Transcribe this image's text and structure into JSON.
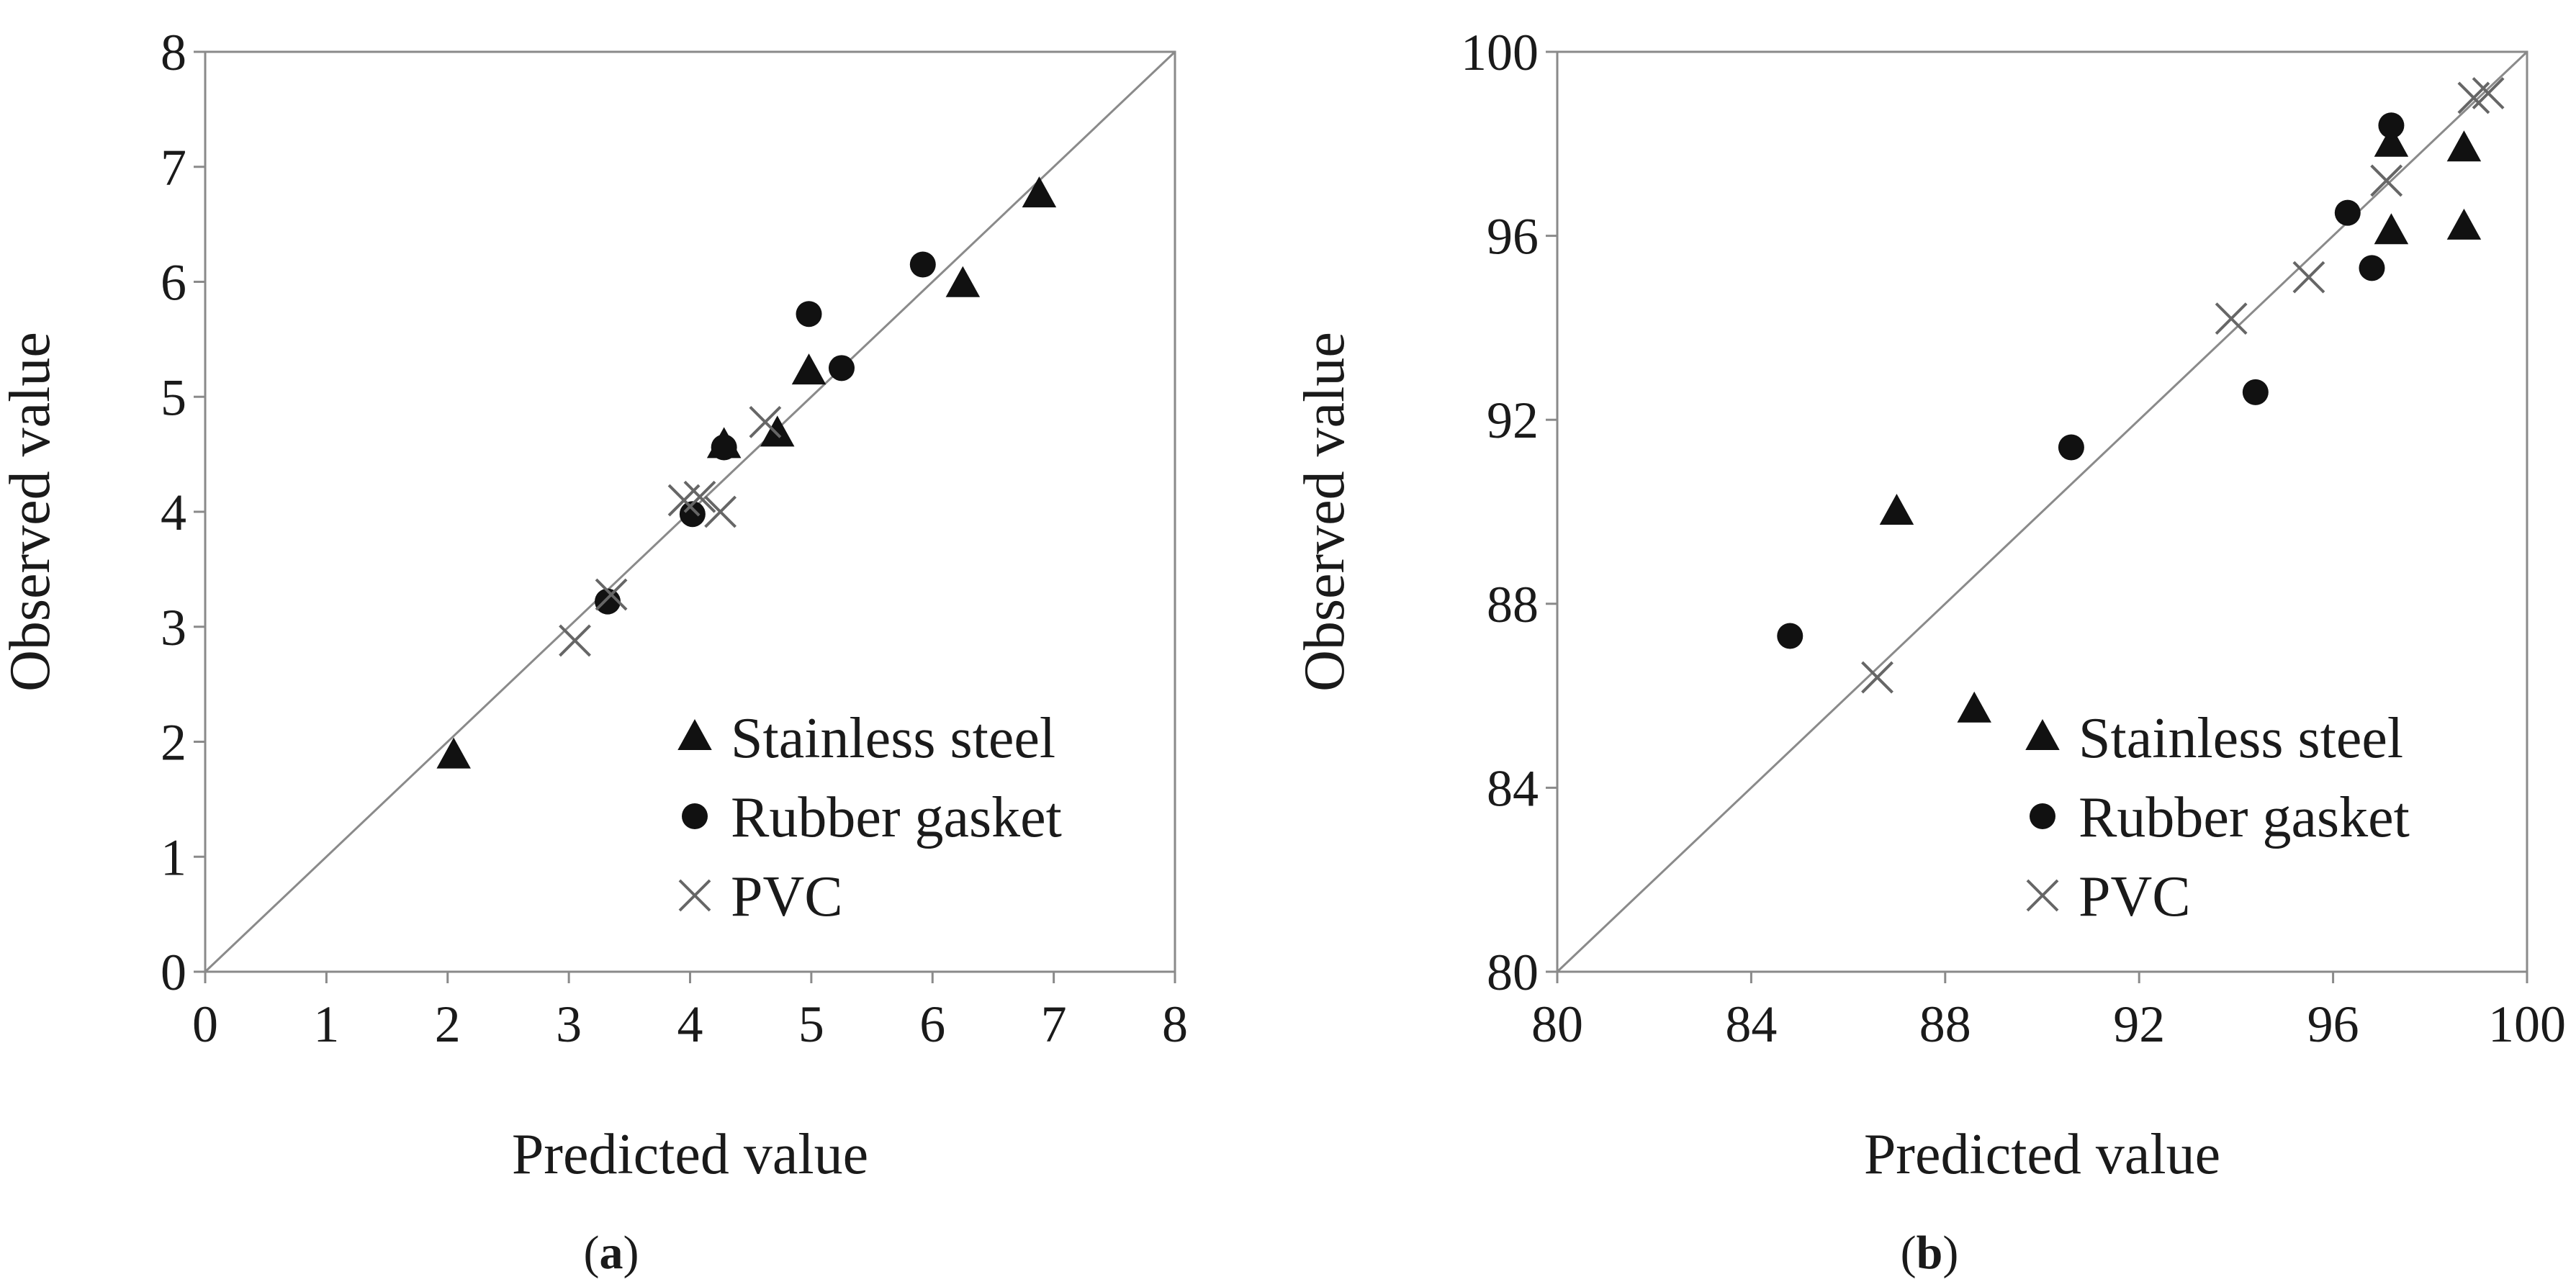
{
  "chart_data": [
    {
      "panel_label": "(a)",
      "type": "scatter",
      "xlabel": "Predicted value",
      "ylabel": "Observed value",
      "xlim": [
        0,
        8
      ],
      "ylim": [
        0,
        8
      ],
      "x_ticks": [
        0,
        1,
        2,
        3,
        4,
        5,
        6,
        7,
        8
      ],
      "y_ticks": [
        0,
        1,
        2,
        3,
        4,
        5,
        6,
        7,
        8
      ],
      "reference_line": "y = x",
      "legend_position": "bottom-right",
      "series": [
        {
          "name": "Stainless steel",
          "marker": "triangle",
          "points": [
            [
              2.05,
              1.88
            ],
            [
              4.28,
              4.58
            ],
            [
              4.72,
              4.68
            ],
            [
              4.98,
              5.22
            ],
            [
              6.25,
              5.98
            ],
            [
              6.88,
              6.76
            ]
          ]
        },
        {
          "name": "Rubber gasket",
          "marker": "circle",
          "points": [
            [
              3.32,
              3.22
            ],
            [
              4.02,
              3.98
            ],
            [
              4.28,
              4.56
            ],
            [
              4.98,
              5.72
            ],
            [
              5.25,
              5.25
            ],
            [
              5.92,
              6.15
            ]
          ]
        },
        {
          "name": "PVC",
          "marker": "cross",
          "points": [
            [
              3.05,
              2.88
            ],
            [
              3.35,
              3.28
            ],
            [
              3.95,
              4.1
            ],
            [
              4.08,
              4.13
            ],
            [
              4.25,
              4.0
            ],
            [
              4.62,
              4.78
            ]
          ]
        }
      ]
    },
    {
      "panel_label": "(b)",
      "type": "scatter",
      "xlabel": "Predicted value",
      "ylabel": "Observed value",
      "xlim": [
        80,
        100
      ],
      "ylim": [
        80,
        100
      ],
      "x_ticks": [
        80,
        84,
        88,
        92,
        96,
        100
      ],
      "y_ticks": [
        80,
        84,
        88,
        92,
        96,
        100
      ],
      "reference_line": "y = x",
      "legend_position": "bottom-right",
      "series": [
        {
          "name": "Stainless steel",
          "marker": "triangle",
          "points": [
            [
              87.0,
              90.0
            ],
            [
              88.6,
              85.7
            ],
            [
              97.2,
              98.0
            ],
            [
              97.2,
              96.1
            ],
            [
              98.7,
              97.9
            ],
            [
              98.7,
              96.2
            ]
          ]
        },
        {
          "name": "Rubber gasket",
          "marker": "circle",
          "points": [
            [
              84.8,
              87.3
            ],
            [
              90.6,
              91.4
            ],
            [
              94.4,
              92.6
            ],
            [
              96.3,
              96.5
            ],
            [
              96.8,
              95.3
            ],
            [
              97.2,
              98.4
            ]
          ]
        },
        {
          "name": "PVC",
          "marker": "cross",
          "points": [
            [
              86.6,
              86.4
            ],
            [
              93.9,
              94.2
            ],
            [
              95.5,
              95.1
            ],
            [
              97.1,
              97.2
            ],
            [
              98.9,
              99.0
            ],
            [
              99.2,
              99.1
            ]
          ]
        }
      ]
    }
  ]
}
